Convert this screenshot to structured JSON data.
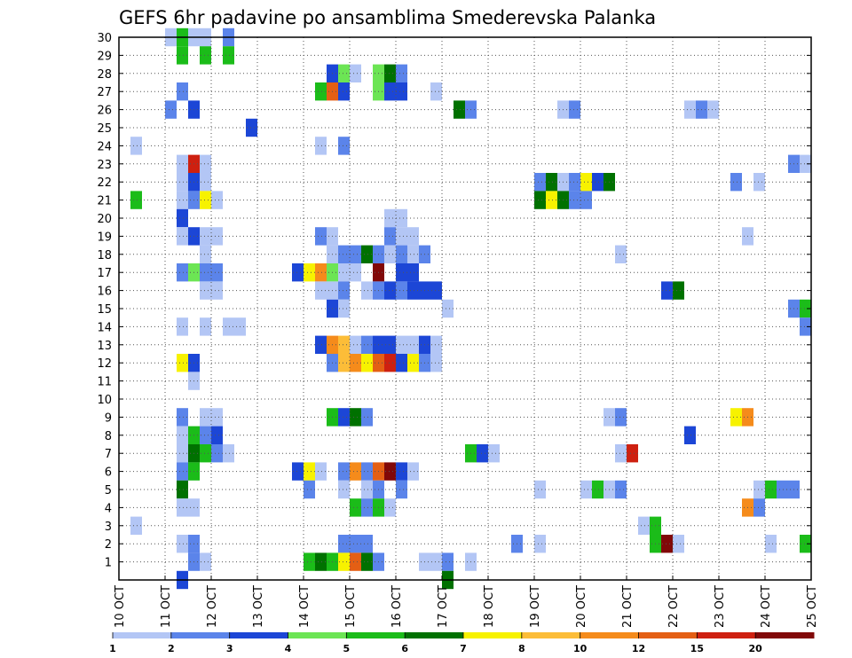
{
  "chart_data": {
    "type": "heatmap",
    "title": "GEFS 6hr padavine po ansamblima Smederevska Palanka",
    "xlabel": "",
    "ylabel": "",
    "x_tick_labels": [
      "10 OCT",
      "11 OCT",
      "12 OCT",
      "13 OCT",
      "14 OCT",
      "15 OCT",
      "16 OCT",
      "17 OCT",
      "18 OCT",
      "19 OCT",
      "20 OCT",
      "21 OCT",
      "22 OCT",
      "23 OCT",
      "24 OCT",
      "25 OCT"
    ],
    "y_tick_labels": [
      "1",
      "2",
      "3",
      "4",
      "5",
      "6",
      "7",
      "8",
      "9",
      "10",
      "11",
      "12",
      "13",
      "14",
      "15",
      "16",
      "17",
      "18",
      "19",
      "20",
      "21",
      "22",
      "23",
      "24",
      "25",
      "26",
      "27",
      "28",
      "29",
      "30"
    ],
    "x_range_days": [
      10,
      25
    ],
    "time_step_hours": 6,
    "member_range": [
      0,
      30
    ],
    "grid": true,
    "legend_placement": "bottom",
    "legend": {
      "labels": [
        "1",
        "2",
        "3",
        "4",
        "5",
        "6",
        "7",
        "8",
        "10",
        "12",
        "15",
        "20"
      ],
      "colors": [
        "#b3c6f5",
        "#5b84ea",
        "#1c46d6",
        "#6ce554",
        "#1bbc19",
        "#007100",
        "#f7f200",
        "#fcbd38",
        "#f58b1b",
        "#e45f14",
        "#ce2010",
        "#810808"
      ]
    },
    "level_thresholds": [
      1,
      2,
      3,
      4,
      5,
      6,
      7,
      8,
      10,
      12,
      15,
      20
    ],
    "cells_note": "each cell: [day (leading edge of 6h step), member, level index into legend.colors]",
    "cells": [
      [
        11.25,
        30,
        0
      ],
      [
        11.5,
        30,
        4
      ],
      [
        11.75,
        30,
        0
      ],
      [
        12.0,
        30,
        0
      ],
      [
        12.5,
        30,
        1
      ],
      [
        11.5,
        29,
        4
      ],
      [
        12.0,
        29,
        4
      ],
      [
        12.5,
        29,
        4
      ],
      [
        14.75,
        28,
        2
      ],
      [
        15.0,
        28,
        3
      ],
      [
        15.25,
        28,
        0
      ],
      [
        15.75,
        28,
        3
      ],
      [
        16.0,
        28,
        5
      ],
      [
        16.25,
        28,
        1
      ],
      [
        11.5,
        27,
        1
      ],
      [
        14.5,
        27,
        4
      ],
      [
        14.75,
        27,
        9
      ],
      [
        15.0,
        27,
        2
      ],
      [
        15.75,
        27,
        3
      ],
      [
        16.0,
        27,
        2
      ],
      [
        16.25,
        27,
        2
      ],
      [
        17.0,
        27,
        0
      ],
      [
        11.25,
        26,
        1
      ],
      [
        11.75,
        26,
        2
      ],
      [
        17.5,
        26,
        5
      ],
      [
        17.75,
        26,
        1
      ],
      [
        19.75,
        26,
        0
      ],
      [
        20.0,
        26,
        1
      ],
      [
        22.5,
        26,
        0
      ],
      [
        22.75,
        26,
        1
      ],
      [
        23.0,
        26,
        0
      ],
      [
        13.0,
        25,
        2
      ],
      [
        10.5,
        24,
        0
      ],
      [
        14.5,
        24,
        0
      ],
      [
        15.0,
        24,
        1
      ],
      [
        11.5,
        23,
        0
      ],
      [
        11.75,
        23,
        10
      ],
      [
        12.0,
        23,
        0
      ],
      [
        24.75,
        23,
        1
      ],
      [
        25.0,
        23,
        0
      ],
      [
        11.5,
        22,
        0
      ],
      [
        11.75,
        22,
        2
      ],
      [
        12.0,
        22,
        0
      ],
      [
        19.25,
        22,
        1
      ],
      [
        19.5,
        22,
        5
      ],
      [
        19.75,
        22,
        0
      ],
      [
        20.0,
        22,
        1
      ],
      [
        20.25,
        22,
        6
      ],
      [
        20.5,
        22,
        2
      ],
      [
        20.75,
        22,
        5
      ],
      [
        23.5,
        22,
        1
      ],
      [
        24.0,
        22,
        0
      ],
      [
        10.5,
        21,
        4
      ],
      [
        11.5,
        21,
        0
      ],
      [
        11.75,
        21,
        1
      ],
      [
        12.0,
        21,
        6
      ],
      [
        12.25,
        21,
        0
      ],
      [
        19.25,
        21,
        5
      ],
      [
        19.5,
        21,
        6
      ],
      [
        19.75,
        21,
        5
      ],
      [
        20.0,
        21,
        1
      ],
      [
        20.25,
        21,
        1
      ],
      [
        11.5,
        20,
        2
      ],
      [
        16.0,
        20,
        0
      ],
      [
        16.25,
        20,
        0
      ],
      [
        11.5,
        19,
        0
      ],
      [
        11.75,
        19,
        2
      ],
      [
        12.0,
        19,
        0
      ],
      [
        12.25,
        19,
        0
      ],
      [
        14.5,
        19,
        1
      ],
      [
        14.75,
        19,
        0
      ],
      [
        16.0,
        19,
        1
      ],
      [
        16.25,
        19,
        0
      ],
      [
        16.5,
        19,
        0
      ],
      [
        23.75,
        19,
        0
      ],
      [
        12.0,
        18,
        0
      ],
      [
        14.75,
        18,
        0
      ],
      [
        15.0,
        18,
        1
      ],
      [
        15.25,
        18,
        1
      ],
      [
        15.5,
        18,
        5
      ],
      [
        15.75,
        18,
        1
      ],
      [
        16.0,
        18,
        0
      ],
      [
        16.25,
        18,
        1
      ],
      [
        16.5,
        18,
        0
      ],
      [
        16.75,
        18,
        1
      ],
      [
        21.0,
        18,
        0
      ],
      [
        11.5,
        17,
        1
      ],
      [
        11.75,
        17,
        3
      ],
      [
        12.0,
        17,
        1
      ],
      [
        12.25,
        17,
        1
      ],
      [
        14.0,
        17,
        2
      ],
      [
        14.25,
        17,
        6
      ],
      [
        14.5,
        17,
        8
      ],
      [
        14.75,
        17,
        3
      ],
      [
        15.0,
        17,
        0
      ],
      [
        15.25,
        17,
        0
      ],
      [
        15.75,
        17,
        11
      ],
      [
        16.25,
        17,
        2
      ],
      [
        16.5,
        17,
        2
      ],
      [
        12.0,
        16,
        0
      ],
      [
        12.25,
        16,
        0
      ],
      [
        14.5,
        16,
        0
      ],
      [
        14.75,
        16,
        0
      ],
      [
        15.0,
        16,
        1
      ],
      [
        15.5,
        16,
        0
      ],
      [
        15.75,
        16,
        1
      ],
      [
        16.0,
        16,
        2
      ],
      [
        16.25,
        16,
        1
      ],
      [
        16.5,
        16,
        2
      ],
      [
        16.75,
        16,
        2
      ],
      [
        17.0,
        16,
        2
      ],
      [
        22.0,
        16,
        2
      ],
      [
        22.25,
        16,
        5
      ],
      [
        14.75,
        15,
        2
      ],
      [
        15.0,
        15,
        0
      ],
      [
        17.25,
        15,
        0
      ],
      [
        24.75,
        15,
        1
      ],
      [
        25.0,
        15,
        4
      ],
      [
        11.5,
        14,
        0
      ],
      [
        12.0,
        14,
        0
      ],
      [
        12.5,
        14,
        0
      ],
      [
        12.75,
        14,
        0
      ],
      [
        25.0,
        14,
        1
      ],
      [
        14.5,
        13,
        2
      ],
      [
        14.75,
        13,
        8
      ],
      [
        15.0,
        13,
        7
      ],
      [
        15.25,
        13,
        0
      ],
      [
        15.5,
        13,
        1
      ],
      [
        15.75,
        13,
        2
      ],
      [
        16.0,
        13,
        2
      ],
      [
        16.25,
        13,
        0
      ],
      [
        16.5,
        13,
        0
      ],
      [
        16.75,
        13,
        2
      ],
      [
        17.0,
        13,
        0
      ],
      [
        11.5,
        12,
        6
      ],
      [
        11.75,
        12,
        2
      ],
      [
        14.75,
        12,
        1
      ],
      [
        15.0,
        12,
        7
      ],
      [
        15.25,
        12,
        8
      ],
      [
        15.5,
        12,
        6
      ],
      [
        15.75,
        12,
        9
      ],
      [
        16.0,
        12,
        10
      ],
      [
        16.25,
        12,
        2
      ],
      [
        16.5,
        12,
        6
      ],
      [
        16.75,
        12,
        1
      ],
      [
        17.0,
        12,
        0
      ],
      [
        11.75,
        11,
        0
      ],
      [
        11.5,
        9,
        1
      ],
      [
        12.0,
        9,
        0
      ],
      [
        12.25,
        9,
        0
      ],
      [
        14.75,
        9,
        4
      ],
      [
        15.0,
        9,
        2
      ],
      [
        15.25,
        9,
        5
      ],
      [
        15.5,
        9,
        1
      ],
      [
        20.75,
        9,
        0
      ],
      [
        21.0,
        9,
        1
      ],
      [
        23.5,
        9,
        6
      ],
      [
        23.75,
        9,
        8
      ],
      [
        11.5,
        8,
        0
      ],
      [
        11.75,
        8,
        4
      ],
      [
        12.0,
        8,
        1
      ],
      [
        12.25,
        8,
        2
      ],
      [
        22.5,
        8,
        2
      ],
      [
        11.5,
        7,
        0
      ],
      [
        11.75,
        7,
        5
      ],
      [
        12.0,
        7,
        4
      ],
      [
        12.25,
        7,
        1
      ],
      [
        12.5,
        7,
        0
      ],
      [
        17.75,
        7,
        4
      ],
      [
        18.0,
        7,
        2
      ],
      [
        18.25,
        7,
        0
      ],
      [
        21.0,
        7,
        0
      ],
      [
        21.25,
        7,
        10
      ],
      [
        11.5,
        6,
        1
      ],
      [
        11.75,
        6,
        4
      ],
      [
        14.0,
        6,
        2
      ],
      [
        14.25,
        6,
        6
      ],
      [
        14.5,
        6,
        0
      ],
      [
        15.0,
        6,
        1
      ],
      [
        15.25,
        6,
        8
      ],
      [
        15.5,
        6,
        1
      ],
      [
        15.75,
        6,
        9
      ],
      [
        16.0,
        6,
        11
      ],
      [
        16.25,
        6,
        2
      ],
      [
        16.5,
        6,
        0
      ],
      [
        11.5,
        5,
        5
      ],
      [
        14.25,
        5,
        1
      ],
      [
        15.0,
        5,
        0
      ],
      [
        15.5,
        5,
        0
      ],
      [
        15.75,
        5,
        1
      ],
      [
        16.25,
        5,
        1
      ],
      [
        19.25,
        5,
        0
      ],
      [
        20.25,
        5,
        0
      ],
      [
        20.5,
        5,
        4
      ],
      [
        20.75,
        5,
        0
      ],
      [
        21.0,
        5,
        1
      ],
      [
        24.0,
        5,
        0
      ],
      [
        24.25,
        5,
        4
      ],
      [
        24.5,
        5,
        1
      ],
      [
        24.75,
        5,
        1
      ],
      [
        11.5,
        4,
        0
      ],
      [
        11.75,
        4,
        0
      ],
      [
        15.25,
        4,
        4
      ],
      [
        15.5,
        4,
        1
      ],
      [
        15.75,
        4,
        4
      ],
      [
        16.0,
        4,
        0
      ],
      [
        23.75,
        4,
        8
      ],
      [
        24.0,
        4,
        1
      ],
      [
        10.5,
        3,
        0
      ],
      [
        21.5,
        3,
        0
      ],
      [
        21.75,
        3,
        4
      ],
      [
        11.5,
        2,
        0
      ],
      [
        11.75,
        2,
        1
      ],
      [
        15.0,
        2,
        1
      ],
      [
        15.25,
        2,
        1
      ],
      [
        15.5,
        2,
        1
      ],
      [
        18.75,
        2,
        1
      ],
      [
        19.25,
        2,
        0
      ],
      [
        21.75,
        2,
        4
      ],
      [
        22.0,
        2,
        11
      ],
      [
        22.25,
        2,
        0
      ],
      [
        24.25,
        2,
        0
      ],
      [
        25.0,
        2,
        4
      ],
      [
        11.75,
        1,
        1
      ],
      [
        12.0,
        1,
        0
      ],
      [
        14.25,
        1,
        4
      ],
      [
        14.5,
        1,
        5
      ],
      [
        14.75,
        1,
        4
      ],
      [
        15.0,
        1,
        6
      ],
      [
        15.25,
        1,
        9
      ],
      [
        15.5,
        1,
        5
      ],
      [
        15.75,
        1,
        1
      ],
      [
        16.75,
        1,
        0
      ],
      [
        17.0,
        1,
        0
      ],
      [
        17.25,
        1,
        1
      ],
      [
        17.75,
        1,
        0
      ],
      [
        11.5,
        0,
        2
      ],
      [
        17.25,
        0,
        5
      ]
    ]
  }
}
